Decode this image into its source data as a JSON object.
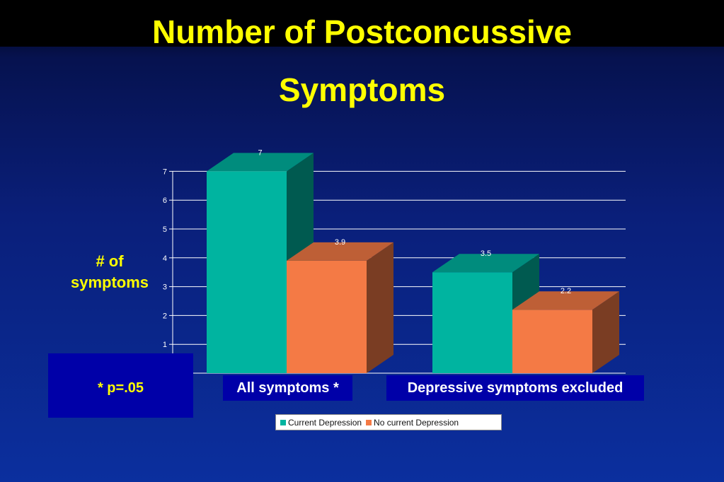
{
  "slide": {
    "title_line1": "Number of Postconcussive",
    "title_line2": "Symptoms",
    "p_note": "* p=.05"
  },
  "chart_data": {
    "type": "bar",
    "title": "Number of Postconcussive Symptoms",
    "ylabel": "# of symptoms",
    "xlabel": "",
    "categories": [
      "All symptoms *",
      "Depressive symptoms excluded"
    ],
    "series": [
      {
        "name": "Current Depression",
        "values": [
          7,
          3.5
        ],
        "color": "#00b4a0"
      },
      {
        "name": "No current Depression",
        "values": [
          3.9,
          2.2
        ],
        "color": "#f47a45"
      }
    ],
    "ylim": [
      0,
      7
    ],
    "yticks": [
      1,
      2,
      3,
      4,
      5,
      6,
      7
    ],
    "grid": true,
    "legend_position": "bottom",
    "style": "3d-bar"
  }
}
